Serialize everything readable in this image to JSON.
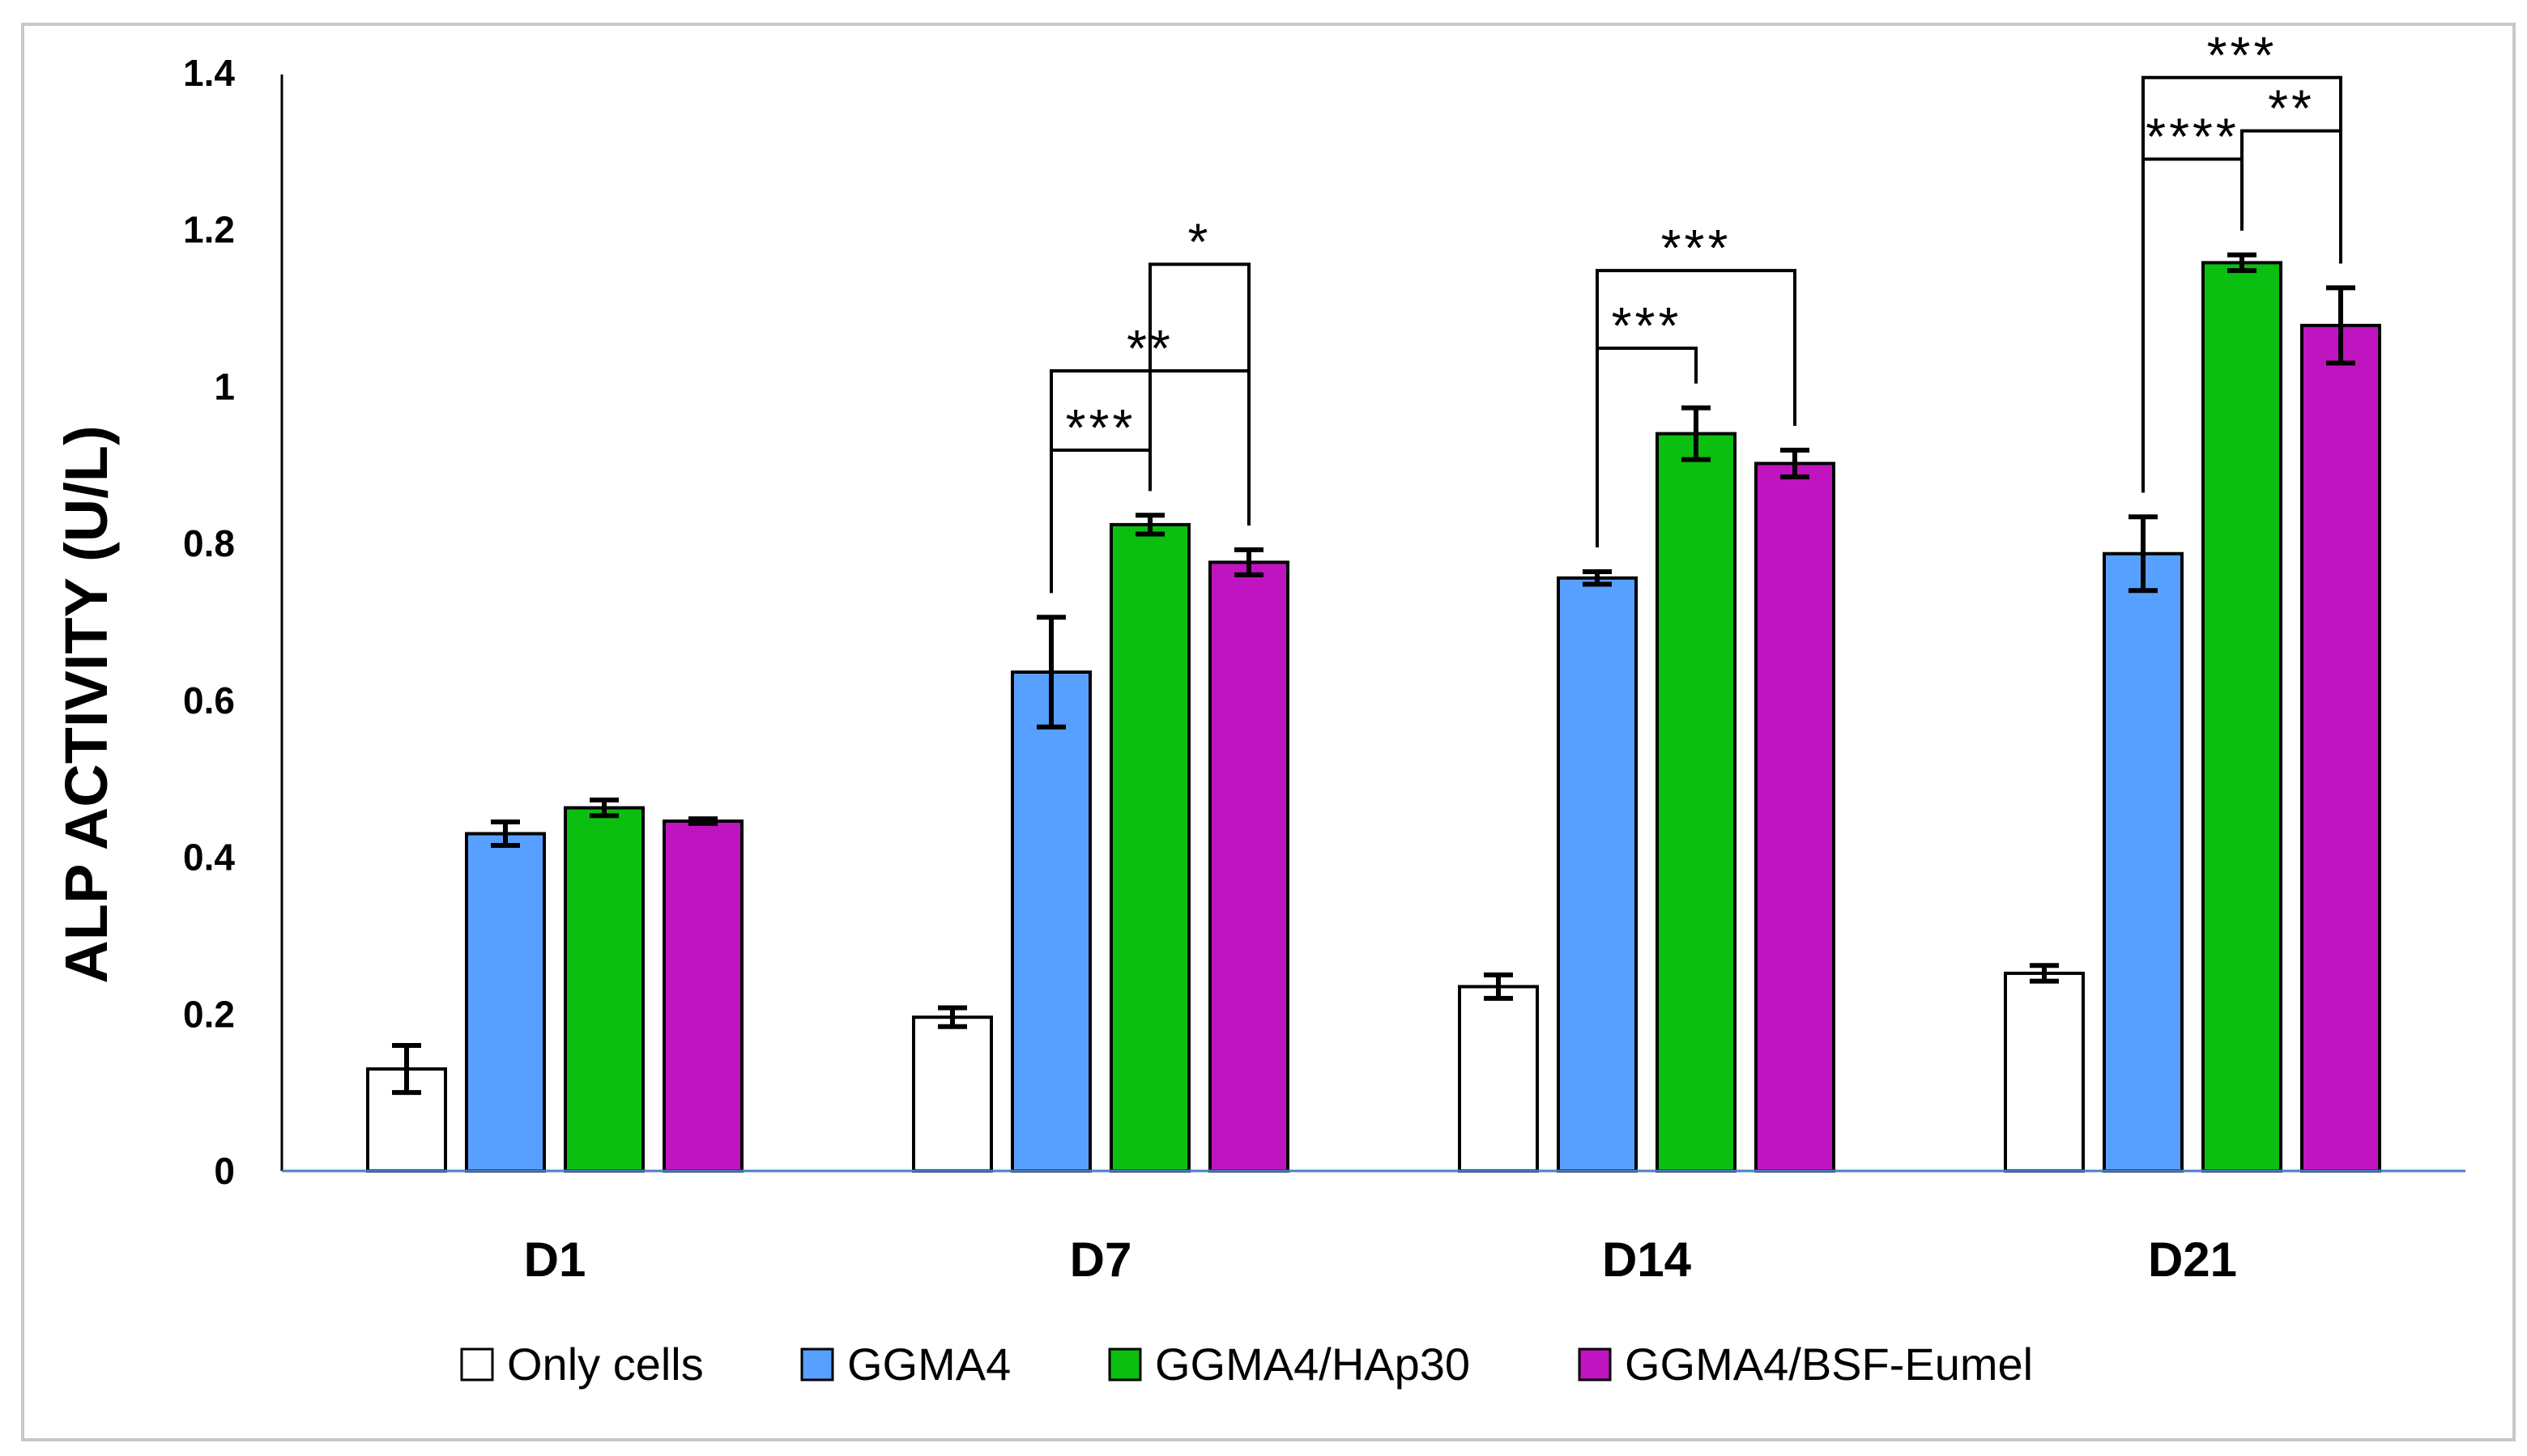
{
  "chart_data": {
    "type": "bar",
    "title": "",
    "xlabel": "",
    "ylabel": "ALP ACTIVITY (U/L)",
    "ylim": [
      0,
      1.4
    ],
    "yticks": [
      "0",
      "0.2",
      "0.4",
      "0.6",
      "0.8",
      "1",
      "1.2",
      "1.4"
    ],
    "grid": false,
    "legend_position": "bottom",
    "categories": [
      "D1",
      "D7",
      "D14",
      "D21"
    ],
    "series": [
      {
        "name": "Only cells",
        "color": "#ffffff",
        "values": [
          0.13,
          0.196,
          0.235,
          0.252
        ],
        "errors": [
          0.03,
          0.012,
          0.015,
          0.01
        ]
      },
      {
        "name": "GGMA4",
        "color": "#58a0ff",
        "values": [
          0.43,
          0.636,
          0.756,
          0.787
        ],
        "errors": [
          0.015,
          0.07,
          0.008,
          0.047
        ]
      },
      {
        "name": "GGMA4/HAp30",
        "color": "#0abf0f",
        "values": [
          0.463,
          0.824,
          0.94,
          1.158
        ],
        "errors": [
          0.01,
          0.012,
          0.033,
          0.01
        ]
      },
      {
        "name": "GGMA4/BSF-Eumel",
        "color": "#c014c0",
        "values": [
          0.446,
          0.776,
          0.902,
          1.078
        ],
        "errors": [
          0.003,
          0.016,
          0.017,
          0.048
        ]
      }
    ],
    "significance": [
      {
        "category": "D7",
        "from": 1,
        "to": 2,
        "label": "***",
        "level": 0.919
      },
      {
        "category": "D7",
        "from": 1,
        "to": 3,
        "label": "**",
        "level": 1.02
      },
      {
        "category": "D7",
        "from": 2,
        "to": 3,
        "label": "*",
        "level": 1.156
      },
      {
        "category": "D14",
        "from": 1,
        "to": 2,
        "label": "***",
        "level": 1.049
      },
      {
        "category": "D14",
        "from": 1,
        "to": 3,
        "label": "***",
        "level": 1.148
      },
      {
        "category": "D21",
        "from": 1,
        "to": 2,
        "label": "****",
        "level": 1.29
      },
      {
        "category": "D21",
        "from": 2,
        "to": 3,
        "label": "**",
        "level": 1.326
      },
      {
        "category": "D21",
        "from": 1,
        "to": 3,
        "label": "***",
        "level": 1.394
      }
    ],
    "axis_color": "#4a7fc8"
  }
}
